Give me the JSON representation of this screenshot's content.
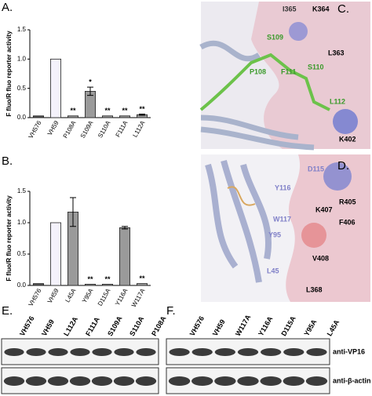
{
  "chart_data": [
    {
      "type": "bar",
      "panel": "A.",
      "y_label": "F fluo/R fluo reporter activity",
      "categories": [
        "VH576",
        "VH59",
        "P108A",
        "S109A",
        "S110A",
        "F111A",
        "L112A"
      ],
      "values": [
        0.03,
        1.0,
        0.03,
        0.45,
        0.03,
        0.03,
        0.05
      ],
      "errors": [
        null,
        null,
        null,
        0.07,
        null,
        null,
        0.01
      ],
      "significance": [
        null,
        null,
        "**",
        "*",
        "**",
        "**",
        "**"
      ],
      "colors": [
        "#555555",
        "#f4f2fb",
        "#9a9a9a",
        "#9a9a9a",
        "#9a9a9a",
        "#9a9a9a",
        "#9a9a9a"
      ],
      "ylim": [
        0,
        1.5
      ],
      "yticks": [
        {
          "value": 0,
          "label": "0.0"
        },
        {
          "value": 0.5,
          "label": "0.5"
        },
        {
          "value": 1.0,
          "label": "1.0"
        },
        {
          "value": 1.5,
          "label": "1.5"
        }
      ]
    },
    {
      "type": "bar",
      "panel": "B.",
      "y_label": "F fluo/R fluo reporter activity",
      "categories": [
        "VH576",
        "VH59",
        "L45A",
        "Y95A",
        "D115A",
        "Y116A",
        "W117A"
      ],
      "values": [
        0.03,
        1.0,
        1.17,
        0.02,
        0.02,
        0.92,
        0.03
      ],
      "errors": [
        null,
        null,
        0.23,
        null,
        null,
        0.02,
        null
      ],
      "significance": [
        null,
        null,
        null,
        "**",
        "**",
        null,
        "**"
      ],
      "colors": [
        "#555555",
        "#f4f2fb",
        "#9a9a9a",
        "#9a9a9a",
        "#9a9a9a",
        "#9a9a9a",
        "#9a9a9a"
      ],
      "ylim": [
        0,
        1.5
      ],
      "yticks": [
        {
          "value": 0,
          "label": "0.0"
        },
        {
          "value": 0.5,
          "label": "0.5"
        },
        {
          "value": 1.0,
          "label": "1.0"
        },
        {
          "value": 1.5,
          "label": "1.5"
        }
      ]
    }
  ],
  "structures": [
    {
      "panel": "C.",
      "residues": [
        "I365",
        "K364",
        "S109",
        "L363",
        "P108",
        "F111",
        "S110",
        "L112",
        "K402"
      ]
    },
    {
      "panel": "D.",
      "residues": [
        "D115",
        "R405",
        "Y116",
        "K407",
        "W117",
        "F406",
        "Y95",
        "V408",
        "L45",
        "L368"
      ]
    }
  ],
  "blots": [
    {
      "panel": "E.",
      "lanes": [
        "VH576",
        "VH59",
        "L112A",
        "F111A",
        "S109A",
        "S110A",
        "P108A"
      ]
    },
    {
      "panel": "F.",
      "lanes": [
        "VH576",
        "VH59",
        "W117A",
        "Y116A",
        "D115A",
        "Y95A",
        "L45A"
      ],
      "rows": [
        "anti-VP16",
        "anti-β-actin"
      ]
    }
  ]
}
